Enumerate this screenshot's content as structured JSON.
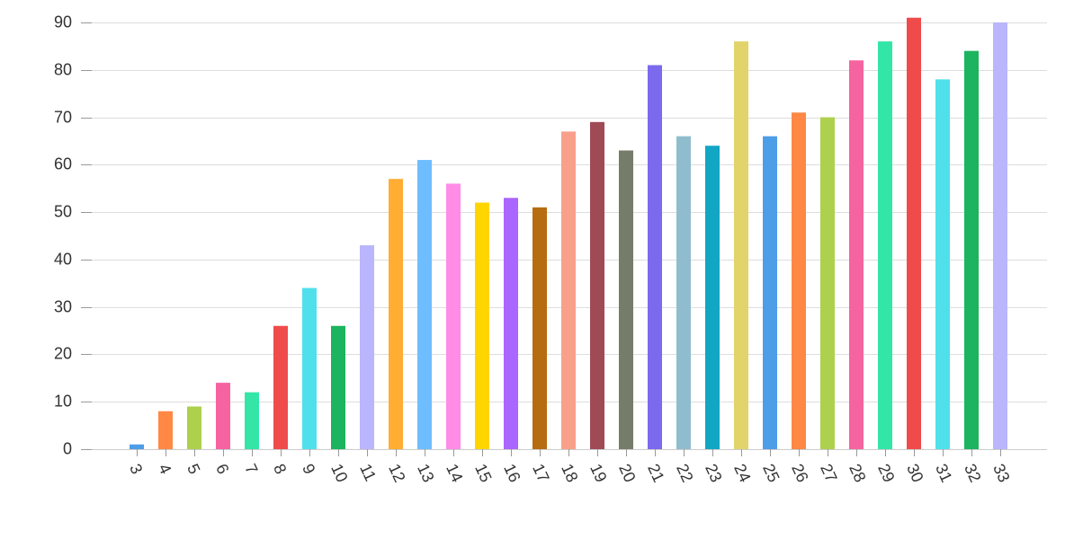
{
  "chart_data": {
    "type": "bar",
    "title": "",
    "xlabel": "",
    "ylabel": "",
    "ylim": [
      0,
      90
    ],
    "y_ticks": [
      0,
      10,
      20,
      30,
      40,
      50,
      60,
      70,
      80,
      90
    ],
    "grid": true,
    "legend": "none",
    "categories": [
      "3",
      "4",
      "5",
      "6",
      "7",
      "8",
      "9",
      "10",
      "11",
      "12",
      "13",
      "14",
      "15",
      "16",
      "17",
      "18",
      "19",
      "20",
      "21",
      "22",
      "23",
      "24",
      "25",
      "26",
      "27",
      "28",
      "29",
      "30",
      "31",
      "32",
      "33"
    ],
    "values": [
      1,
      8,
      9,
      14,
      12,
      26,
      34,
      26,
      43,
      57,
      61,
      56,
      52,
      53,
      51,
      67,
      69,
      63,
      81,
      66,
      64,
      86,
      66,
      71,
      70,
      82,
      86,
      91,
      78,
      84,
      90
    ],
    "colors": [
      "#4e9de8",
      "#ff8845",
      "#add04d",
      "#f563a0",
      "#33e6a8",
      "#f04b4b",
      "#4fe0ec",
      "#1cb45f",
      "#bab5fc",
      "#ffad33",
      "#6ebeff",
      "#ff8ce6",
      "#ffd500",
      "#aa66ff",
      "#b66d10",
      "#f8a08a",
      "#9f4a55",
      "#767c6a",
      "#7b69ee",
      "#8fbdcd",
      "#12a6c5",
      "#e2d46a",
      "#4e9de8",
      "#ff8845",
      "#add04d",
      "#f563a0",
      "#33e6a8",
      "#f04b4b",
      "#4fe0ec",
      "#1cb45f",
      "#bab5fc"
    ]
  }
}
